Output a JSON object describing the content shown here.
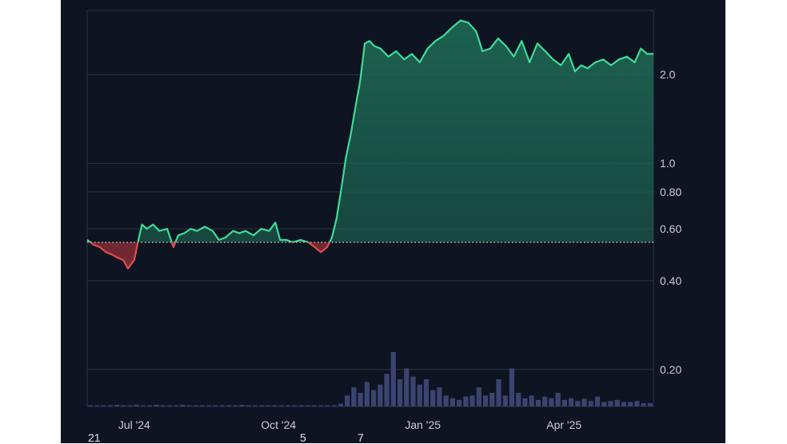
{
  "chart_data": {
    "type": "area",
    "y_scale": "log",
    "ylim": [
      0.15,
      3.3
    ],
    "grid": true,
    "baseline": 0.54,
    "colors": {
      "up_line": "#3ddc97",
      "down_line": "#e14d4d",
      "up_fill": "#1e6a55",
      "down_fill": "#7a2a33",
      "grid": "#2b3242",
      "baseline": "#d8d8d8",
      "volume": "#3b4370",
      "panel_bg": "#0e1421"
    },
    "y_ticks": [
      "2.0",
      "1.0",
      "0.80",
      "0.60",
      "0.40",
      "0.20"
    ],
    "y_tick_values": [
      2.0,
      1.0,
      0.8,
      0.6,
      0.4,
      0.2
    ],
    "x_ticks": [
      "Jul '24",
      "Oct '24",
      "Jan '25",
      "Apr '25"
    ],
    "x_tick_dates": [
      "2024-07-01",
      "2024-10-01",
      "2025-01-01",
      "2025-04-01"
    ],
    "x_range": [
      "2024-06-01",
      "2025-05-28"
    ],
    "series": [
      {
        "x": [
          "2024-06-01",
          "2024-06-05",
          "2024-06-09",
          "2024-06-13",
          "2024-06-17",
          "2024-06-20",
          "2024-06-24",
          "2024-06-27",
          "2024-07-01",
          "2024-07-04",
          "2024-07-06",
          "2024-07-09",
          "2024-07-13",
          "2024-07-17",
          "2024-07-22",
          "2024-07-26",
          "2024-07-29",
          "2024-08-02",
          "2024-08-06",
          "2024-08-10",
          "2024-08-15",
          "2024-08-20",
          "2024-08-24",
          "2024-08-28",
          "2024-09-02",
          "2024-09-06",
          "2024-09-10",
          "2024-09-15",
          "2024-09-20",
          "2024-09-25",
          "2024-09-29",
          "2024-10-02",
          "2024-10-06",
          "2024-10-10",
          "2024-10-15",
          "2024-10-20",
          "2024-10-24",
          "2024-10-28",
          "2024-11-01",
          "2024-11-04",
          "2024-11-07",
          "2024-11-10",
          "2024-11-13",
          "2024-11-16",
          "2024-11-19",
          "2024-11-22",
          "2024-11-25",
          "2024-11-28",
          "2024-12-01",
          "2024-12-05",
          "2024-12-10",
          "2024-12-15",
          "2024-12-20",
          "2024-12-25",
          "2024-12-30",
          "2025-01-04",
          "2025-01-09",
          "2025-01-14",
          "2025-01-20",
          "2025-01-25",
          "2025-01-30",
          "2025-02-04",
          "2025-02-08",
          "2025-02-13",
          "2025-02-18",
          "2025-02-23",
          "2025-02-28",
          "2025-03-05",
          "2025-03-10",
          "2025-03-15",
          "2025-03-20",
          "2025-03-25",
          "2025-03-30",
          "2025-04-04",
          "2025-04-08",
          "2025-04-12",
          "2025-04-16",
          "2025-04-21",
          "2025-04-26",
          "2025-05-01",
          "2025-05-06",
          "2025-05-11",
          "2025-05-16",
          "2025-05-20",
          "2025-05-24",
          "2025-05-28"
        ],
        "y": [
          0.55,
          0.53,
          0.52,
          0.5,
          0.49,
          0.48,
          0.47,
          0.44,
          0.47,
          0.56,
          0.62,
          0.6,
          0.62,
          0.59,
          0.6,
          0.52,
          0.57,
          0.58,
          0.6,
          0.59,
          0.61,
          0.59,
          0.55,
          0.56,
          0.59,
          0.58,
          0.59,
          0.57,
          0.6,
          0.59,
          0.63,
          0.55,
          0.55,
          0.54,
          0.55,
          0.54,
          0.52,
          0.5,
          0.52,
          0.56,
          0.65,
          0.82,
          1.05,
          1.25,
          1.55,
          1.9,
          2.55,
          2.6,
          2.5,
          2.45,
          2.3,
          2.4,
          2.25,
          2.35,
          2.2,
          2.45,
          2.6,
          2.7,
          2.9,
          3.05,
          3.0,
          2.8,
          2.4,
          2.45,
          2.65,
          2.5,
          2.3,
          2.6,
          2.2,
          2.55,
          2.4,
          2.25,
          2.15,
          2.35,
          2.05,
          2.15,
          2.1,
          2.2,
          2.25,
          2.15,
          2.25,
          2.3,
          2.2,
          2.45,
          2.35,
          2.35
        ]
      }
    ],
    "volume": [
      0.02,
      0.02,
      0.02,
      0.02,
      0.03,
      0.02,
      0.02,
      0.03,
      0.02,
      0.02,
      0.03,
      0.02,
      0.02,
      0.02,
      0.03,
      0.02,
      0.02,
      0.02,
      0.02,
      0.02,
      0.02,
      0.02,
      0.02,
      0.03,
      0.02,
      0.02,
      0.02,
      0.02,
      0.02,
      0.02,
      0.02,
      0.02,
      0.02,
      0.02,
      0.02,
      0.02,
      0.02,
      0.02,
      0.05,
      0.2,
      0.35,
      0.25,
      0.45,
      0.3,
      0.4,
      0.6,
      1.0,
      0.5,
      0.7,
      0.55,
      0.4,
      0.5,
      0.3,
      0.35,
      0.2,
      0.15,
      0.12,
      0.18,
      0.2,
      0.35,
      0.2,
      0.25,
      0.5,
      0.2,
      0.7,
      0.25,
      0.15,
      0.2,
      0.12,
      0.18,
      0.15,
      0.25,
      0.12,
      0.15,
      0.1,
      0.14,
      0.1,
      0.18,
      0.08,
      0.1,
      0.12,
      0.08,
      0.08,
      0.1,
      0.06,
      0.06
    ],
    "edge_labels": [
      "21",
      "5",
      "7"
    ]
  }
}
